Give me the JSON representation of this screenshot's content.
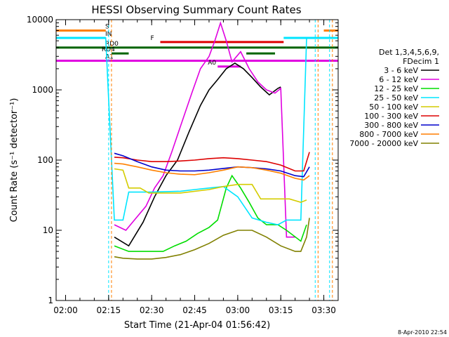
{
  "chart_data": {
    "type": "line",
    "title": "HESSI Observing Summary Count Rates",
    "xlabel": "Start Time (21-Apr-04 01:56:42)",
    "ylabel": "Count Rate (s⁻¹ detector⁻¹)",
    "y_scale": "log",
    "ylim": [
      1,
      10000
    ],
    "xlim": [
      "01:56:42",
      "03:35:00"
    ],
    "x_ticks": [
      "02:00",
      "02:15",
      "02:30",
      "02:45",
      "03:00",
      "03:15",
      "03:30"
    ],
    "y_ticks": [
      "1",
      "10",
      "100",
      "1000",
      "10000"
    ],
    "legend_title": [
      "Det 1,3,4,5,6,9,",
      "FDecim 1"
    ],
    "legend_position": "right",
    "series": [
      {
        "name": "3 - 6 keV",
        "color": "#000000",
        "points": [
          [
            "02:17",
            8
          ],
          [
            "02:22",
            6
          ],
          [
            "02:27",
            13
          ],
          [
            "02:31",
            30
          ],
          [
            "02:35",
            60
          ],
          [
            "02:39",
            100
          ],
          [
            "02:43",
            250
          ],
          [
            "02:47",
            600
          ],
          [
            "02:50",
            1000
          ],
          [
            "02:53",
            1400
          ],
          [
            "02:56",
            2000
          ],
          [
            "02:59",
            2400
          ],
          [
            "03:02",
            2000
          ],
          [
            "03:05",
            1500
          ],
          [
            "03:08",
            1100
          ],
          [
            "03:11",
            850
          ],
          [
            "03:14",
            1050
          ],
          [
            "03:15",
            1100
          ]
        ]
      },
      {
        "name": "6 - 12 keV",
        "color": "#e000e0",
        "points": [
          [
            "02:17",
            12
          ],
          [
            "02:21",
            10
          ],
          [
            "02:24",
            14
          ],
          [
            "02:28",
            22
          ],
          [
            "02:31",
            40
          ],
          [
            "02:34",
            60
          ],
          [
            "02:37",
            130
          ],
          [
            "02:40",
            300
          ],
          [
            "02:44",
            900
          ],
          [
            "02:47",
            2000
          ],
          [
            "02:50",
            3000
          ],
          [
            "02:52",
            5000
          ],
          [
            "02:54",
            9000
          ],
          [
            "02:56",
            5000
          ],
          [
            "02:58",
            2500
          ],
          [
            "03:01",
            3500
          ],
          [
            "03:04",
            2000
          ],
          [
            "03:07",
            1300
          ],
          [
            "03:10",
            1000
          ],
          [
            "03:13",
            900
          ],
          [
            "03:15",
            1050
          ],
          [
            "03:17",
            8
          ],
          [
            "03:20",
            8
          ]
        ]
      },
      {
        "name": "12 - 25 keV",
        "color": "#00dd00",
        "points": [
          [
            "02:17",
            6
          ],
          [
            "02:22",
            5
          ],
          [
            "02:26",
            5
          ],
          [
            "02:30",
            5
          ],
          [
            "02:34",
            5
          ],
          [
            "02:38",
            6
          ],
          [
            "02:42",
            7
          ],
          [
            "02:46",
            9
          ],
          [
            "02:50",
            11
          ],
          [
            "02:53",
            14
          ],
          [
            "02:56",
            40
          ],
          [
            "02:58",
            60
          ],
          [
            "03:01",
            40
          ],
          [
            "03:04",
            25
          ],
          [
            "03:07",
            15
          ],
          [
            "03:10",
            12
          ],
          [
            "03:14",
            12
          ],
          [
            "03:17",
            10
          ],
          [
            "03:22",
            7
          ],
          [
            "03:24",
            12
          ]
        ]
      },
      {
        "name": "25 - 50 keV",
        "color": "#00e5ff",
        "points": [
          [
            "01:56:42",
            5500
          ],
          [
            "02:14",
            5500
          ],
          [
            "02:17",
            14
          ],
          [
            "02:20",
            14
          ],
          [
            "02:22",
            35
          ],
          [
            "02:30",
            35
          ],
          [
            "02:40",
            36
          ],
          [
            "02:45",
            38
          ],
          [
            "02:50",
            40
          ],
          [
            "02:55",
            42
          ],
          [
            "03:00",
            30
          ],
          [
            "03:05",
            15
          ],
          [
            "03:10",
            13
          ],
          [
            "03:14",
            12
          ],
          [
            "03:17",
            14
          ],
          [
            "03:22",
            14
          ],
          [
            "03:24",
            5500
          ],
          [
            "03:35",
            5500
          ]
        ]
      },
      {
        "name": "50 - 100 keV",
        "color": "#d4cc00",
        "points": [
          [
            "02:17",
            75
          ],
          [
            "02:20",
            72
          ],
          [
            "02:22",
            40
          ],
          [
            "02:26",
            40
          ],
          [
            "02:29",
            34
          ],
          [
            "02:40",
            34
          ],
          [
            "02:50",
            38
          ],
          [
            "02:55",
            42
          ],
          [
            "03:00",
            45
          ],
          [
            "03:05",
            45
          ],
          [
            "03:08",
            28
          ],
          [
            "03:15",
            28
          ],
          [
            "03:18",
            28
          ],
          [
            "03:22",
            25
          ],
          [
            "03:24",
            27
          ]
        ]
      },
      {
        "name": "100 - 300 keV",
        "color": "#dd0000",
        "points": [
          [
            "02:17",
            110
          ],
          [
            "02:20",
            108
          ],
          [
            "02:25",
            100
          ],
          [
            "02:30",
            95
          ],
          [
            "02:35",
            95
          ],
          [
            "02:40",
            97
          ],
          [
            "02:45",
            100
          ],
          [
            "02:50",
            105
          ],
          [
            "02:55",
            108
          ],
          [
            "03:00",
            105
          ],
          [
            "03:05",
            100
          ],
          [
            "03:10",
            95
          ],
          [
            "03:15",
            85
          ],
          [
            "03:20",
            70
          ],
          [
            "03:23",
            70
          ],
          [
            "03:25",
            130
          ]
        ]
      },
      {
        "name": "300 - 800 keV",
        "color": "#0000cc",
        "points": [
          [
            "02:17",
            125
          ],
          [
            "02:20",
            115
          ],
          [
            "02:25",
            95
          ],
          [
            "02:30",
            80
          ],
          [
            "02:35",
            72
          ],
          [
            "02:40",
            70
          ],
          [
            "02:45",
            70
          ],
          [
            "02:50",
            72
          ],
          [
            "02:55",
            76
          ],
          [
            "03:00",
            80
          ],
          [
            "03:05",
            78
          ],
          [
            "03:10",
            75
          ],
          [
            "03:15",
            70
          ],
          [
            "03:20",
            60
          ],
          [
            "03:23",
            58
          ],
          [
            "03:25",
            80
          ]
        ]
      },
      {
        "name": "800 - 7000 keV",
        "color": "#ff7f00",
        "points": [
          [
            "02:17",
            90
          ],
          [
            "02:20",
            88
          ],
          [
            "02:25",
            80
          ],
          [
            "02:30",
            72
          ],
          [
            "02:35",
            66
          ],
          [
            "02:40",
            63
          ],
          [
            "02:45",
            62
          ],
          [
            "02:50",
            66
          ],
          [
            "02:55",
            72
          ],
          [
            "03:00",
            80
          ],
          [
            "03:05",
            78
          ],
          [
            "03:10",
            72
          ],
          [
            "03:15",
            65
          ],
          [
            "03:20",
            55
          ],
          [
            "03:23",
            52
          ],
          [
            "03:25",
            60
          ]
        ]
      },
      {
        "name": "7000 - 20000 keV",
        "color": "#808000",
        "points": [
          [
            "02:17",
            4.2
          ],
          [
            "02:20",
            4
          ],
          [
            "02:25",
            3.9
          ],
          [
            "02:30",
            3.9
          ],
          [
            "02:35",
            4.1
          ],
          [
            "02:40",
            4.5
          ],
          [
            "02:45",
            5.3
          ],
          [
            "02:50",
            6.5
          ],
          [
            "02:55",
            8.5
          ],
          [
            "03:00",
            10
          ],
          [
            "03:05",
            10
          ],
          [
            "03:10",
            8
          ],
          [
            "03:15",
            6
          ],
          [
            "03:20",
            5
          ],
          [
            "03:22",
            5
          ],
          [
            "03:24",
            8
          ],
          [
            "03:25",
            15
          ]
        ]
      }
    ],
    "flags": [
      {
        "label": "S",
        "color": "#ff7f00",
        "value": 7000,
        "start": "01:56:42",
        "end": "02:14",
        "start2": "03:30",
        "end2": "03:35"
      },
      {
        "label": "IN",
        "color": "#00e5ff",
        "value": 5500,
        "start": "01:56:42",
        "end": "02:14",
        "start2": "03:16",
        "end2": "03:35"
      },
      {
        "label": "F",
        "color": "#dd0000",
        "value": 4800,
        "start": "02:33",
        "end": "03:16"
      },
      {
        "label": "RD0",
        "color": "#006400",
        "value": 4000,
        "start": "01:56:42",
        "end": "03:35"
      },
      {
        "label": "RD4",
        "color": "#006400",
        "value": 3300,
        "start": "02:16",
        "end": "02:22",
        "start2": "03:03",
        "end2": "03:13"
      },
      {
        "label": "A1",
        "color": "#e000e0",
        "value": 2600,
        "start": "01:56:42",
        "end": "03:35"
      },
      {
        "label": "A0",
        "color": "#e000e0",
        "value": 2150,
        "start": "02:53",
        "end": "03:01"
      }
    ],
    "vertical_markers": [
      {
        "time": "02:15",
        "color": "#00e5ff"
      },
      {
        "time": "02:16",
        "color": "#ff7f00"
      },
      {
        "time": "03:27",
        "color": "#00e5ff"
      },
      {
        "time": "03:28",
        "color": "#ff7f00"
      },
      {
        "time": "03:32",
        "color": "#00e5ff"
      },
      {
        "time": "03:33",
        "color": "#ff7f00"
      }
    ]
  },
  "timestamp": "8-Apr-2010 22:54"
}
